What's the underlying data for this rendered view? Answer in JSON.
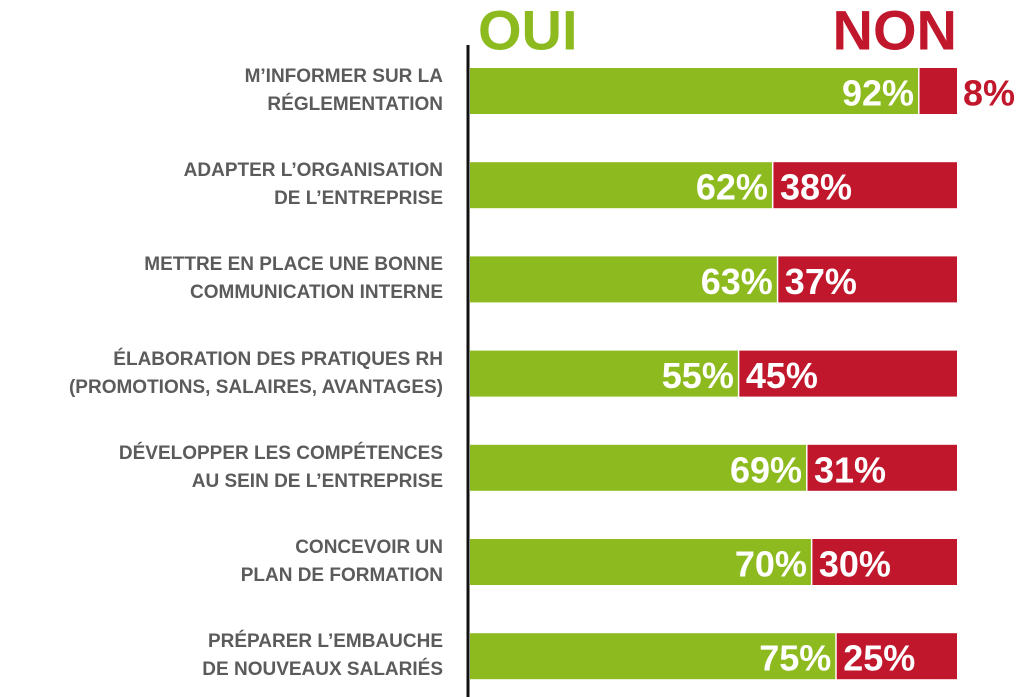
{
  "chart_data": {
    "type": "stacked-bar-horizontal",
    "categories": [
      "M’INFORMER SUR LA\nRÉGLEMENTATION",
      "ADAPTER L’ORGANISATION\nDE L’ENTREPRISE",
      "METTRE EN PLACE UNE BONNE\nCOMMUNICATION INTERNE",
      "ÉLABORATION DES PRATIQUES RH\n(PROMOTIONS, SALAIRES, AVANTAGES)",
      "DÉVELOPPER LES COMPÉTENCES\nAU SEIN DE L’ENTREPRISE",
      "CONCEVOIR UN\nPLAN DE FORMATION",
      "PRÉPARER L’EMBAUCHE\nDE NOUVEAUX SALARIÉS"
    ],
    "series": [
      {
        "name": "OUI",
        "color": "#8dbb1f",
        "values": [
          92,
          62,
          63,
          55,
          69,
          70,
          75
        ],
        "value_labels": [
          "92%",
          "62%",
          "63%",
          "55%",
          "69%",
          "70%",
          "75%"
        ]
      },
      {
        "name": "NON",
        "color": "#c1172c",
        "values": [
          8,
          38,
          37,
          45,
          31,
          30,
          25
        ],
        "value_labels": [
          "8%",
          "38%",
          "37%",
          "45%",
          "31%",
          "30%",
          "25%"
        ]
      }
    ],
    "xlim": [
      0,
      100
    ]
  }
}
